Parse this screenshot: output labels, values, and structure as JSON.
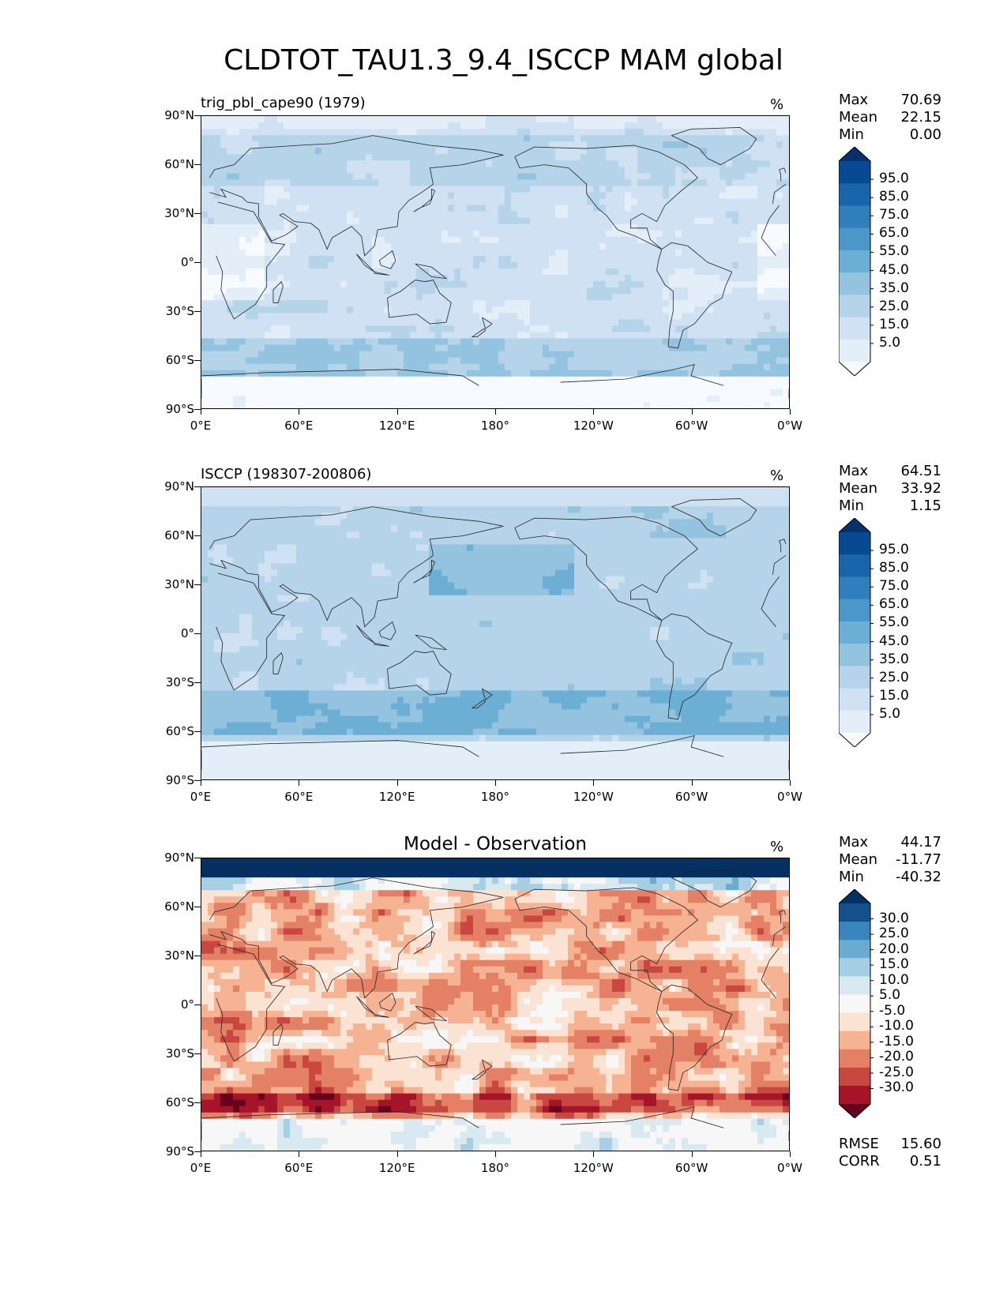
{
  "title": "CLDTOT_TAU1.3_9.4_ISCCP MAM global",
  "colors": {
    "blues": [
      "#f7fbff",
      "#e3eef9",
      "#cfe1f2",
      "#b5d4e9",
      "#93c3df",
      "#6daed5",
      "#4b97c9",
      "#2f7fbc",
      "#1865ac",
      "#084a91",
      "#08306b"
    ],
    "diverging": [
      "#67001f",
      "#a51429",
      "#c94741",
      "#e48066",
      "#f6b393",
      "#fbe3d4",
      "#f7f7f7",
      "#d8e9f1",
      "#a6cfe4",
      "#6aacd0",
      "#3885bc",
      "#14508c",
      "#053061"
    ]
  },
  "axes": {
    "y_ticks": [
      "90°N",
      "60°N",
      "30°N",
      "0°",
      "30°S",
      "60°S",
      "90°S"
    ],
    "x_ticks": [
      "0°E",
      "60°E",
      "120°E",
      "180°",
      "120°W",
      "60°W",
      "0°W"
    ]
  },
  "chart_data": [
    {
      "type": "heatmap",
      "title": "trig_pbl_cape90 (1979)",
      "units": "%",
      "stats": {
        "max_label": "Max",
        "max": "70.69",
        "mean_label": "Mean",
        "mean": "22.15",
        "min_label": "Min",
        "min": "0.00"
      },
      "colorbar_levels": [
        "95.0",
        "85.0",
        "75.0",
        "65.0",
        "55.0",
        "45.0",
        "35.0",
        "25.0",
        "15.0",
        "5.0"
      ],
      "field_mean": 22.15,
      "lat_range": [
        -90,
        90
      ],
      "lon_range": [
        0,
        360
      ]
    },
    {
      "type": "heatmap",
      "title": "ISCCP (198307-200806)",
      "units": "%",
      "stats": {
        "max_label": "Max",
        "max": "64.51",
        "mean_label": "Mean",
        "mean": "33.92",
        "min_label": "Min",
        "min": "1.15"
      },
      "colorbar_levels": [
        "95.0",
        "85.0",
        "75.0",
        "65.0",
        "55.0",
        "45.0",
        "35.0",
        "25.0",
        "15.0",
        "5.0"
      ],
      "field_mean": 33.92,
      "lat_range": [
        -90,
        90
      ],
      "lon_range": [
        0,
        360
      ]
    },
    {
      "type": "heatmap",
      "title": "Model - Observation",
      "units": "%",
      "stats": {
        "max_label": "Max",
        "max": "44.17",
        "mean_label": "Mean",
        "mean": "-11.77",
        "min_label": "Min",
        "min": "-40.32"
      },
      "colorbar_levels": [
        "30.0",
        "25.0",
        "20.0",
        "15.0",
        "10.0",
        "5.0",
        "-5.0",
        "-10.0",
        "-15.0",
        "-20.0",
        "-25.0",
        "-30.0"
      ],
      "field_mean": -11.77,
      "rmse_label": "RMSE",
      "rmse": "15.60",
      "corr_label": "CORR",
      "corr": "0.51",
      "lat_range": [
        -90,
        90
      ],
      "lon_range": [
        0,
        360
      ]
    }
  ]
}
